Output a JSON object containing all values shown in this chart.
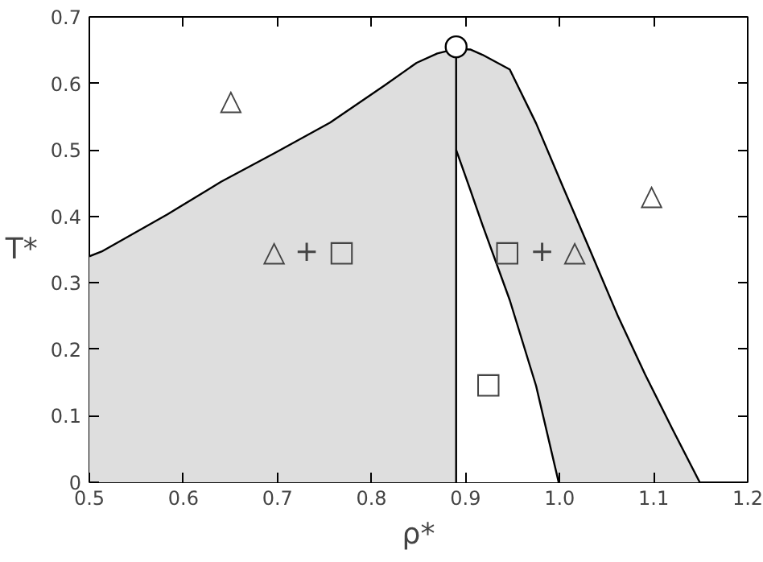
{
  "chart_data": {
    "type": "area",
    "xlabel": "ρ*",
    "ylabel": "T*",
    "xlim": [
      0.5,
      1.2
    ],
    "ylim": [
      0,
      0.7
    ],
    "xticks": [
      0.5,
      0.6,
      0.7,
      0.8,
      0.9,
      {
        "value": 1.0,
        "label": "1.0"
      },
      1.1,
      1.2
    ],
    "yticks": [
      0,
      0.1,
      0.2,
      0.3,
      0.4,
      0.5,
      0.6,
      0.7
    ],
    "grid": false,
    "series": [
      {
        "color": "#dedede",
        "x": [
          0.5,
          0.513,
          0.583,
          0.64,
          0.698,
          0.756,
          0.814,
          0.848,
          0.87,
          0.89
        ],
        "values": [
          0.34,
          0.347,
          0.403,
          0.452,
          0.496,
          0.541,
          0.597,
          0.631,
          0.645,
          0.652
        ]
      },
      {
        "color": "#dedede",
        "x": [
          0.89,
          0.905,
          0.918,
          0.947,
          0.975,
          1.004,
          1.033,
          1.062,
          1.091,
          1.12,
          1.149
        ],
        "values": [
          0.652,
          0.651,
          0.643,
          0.621,
          0.54,
          0.443,
          0.347,
          0.25,
          0.162,
          0.08,
          0
        ]
      },
      {
        "color": "#ffffff",
        "x": [
          0.89,
          0.905,
          0.918,
          0.947,
          0.975,
          0.999
        ],
        "values": [
          0.5,
          0.44,
          0.387,
          0.274,
          0.145,
          0
        ]
      },
      {
        "type": "line",
        "color": "#000000",
        "x": [
          0.89,
          0.89
        ],
        "values": [
          0,
          0.652
        ]
      },
      {
        "type": "scatter",
        "marker": "circle",
        "color": "#ffffff",
        "x": [
          0.89
        ],
        "values": [
          0.655
        ]
      }
    ],
    "annotations": [
      "△",
      "△ + □",
      "□ + △",
      "△",
      "□"
    ]
  }
}
